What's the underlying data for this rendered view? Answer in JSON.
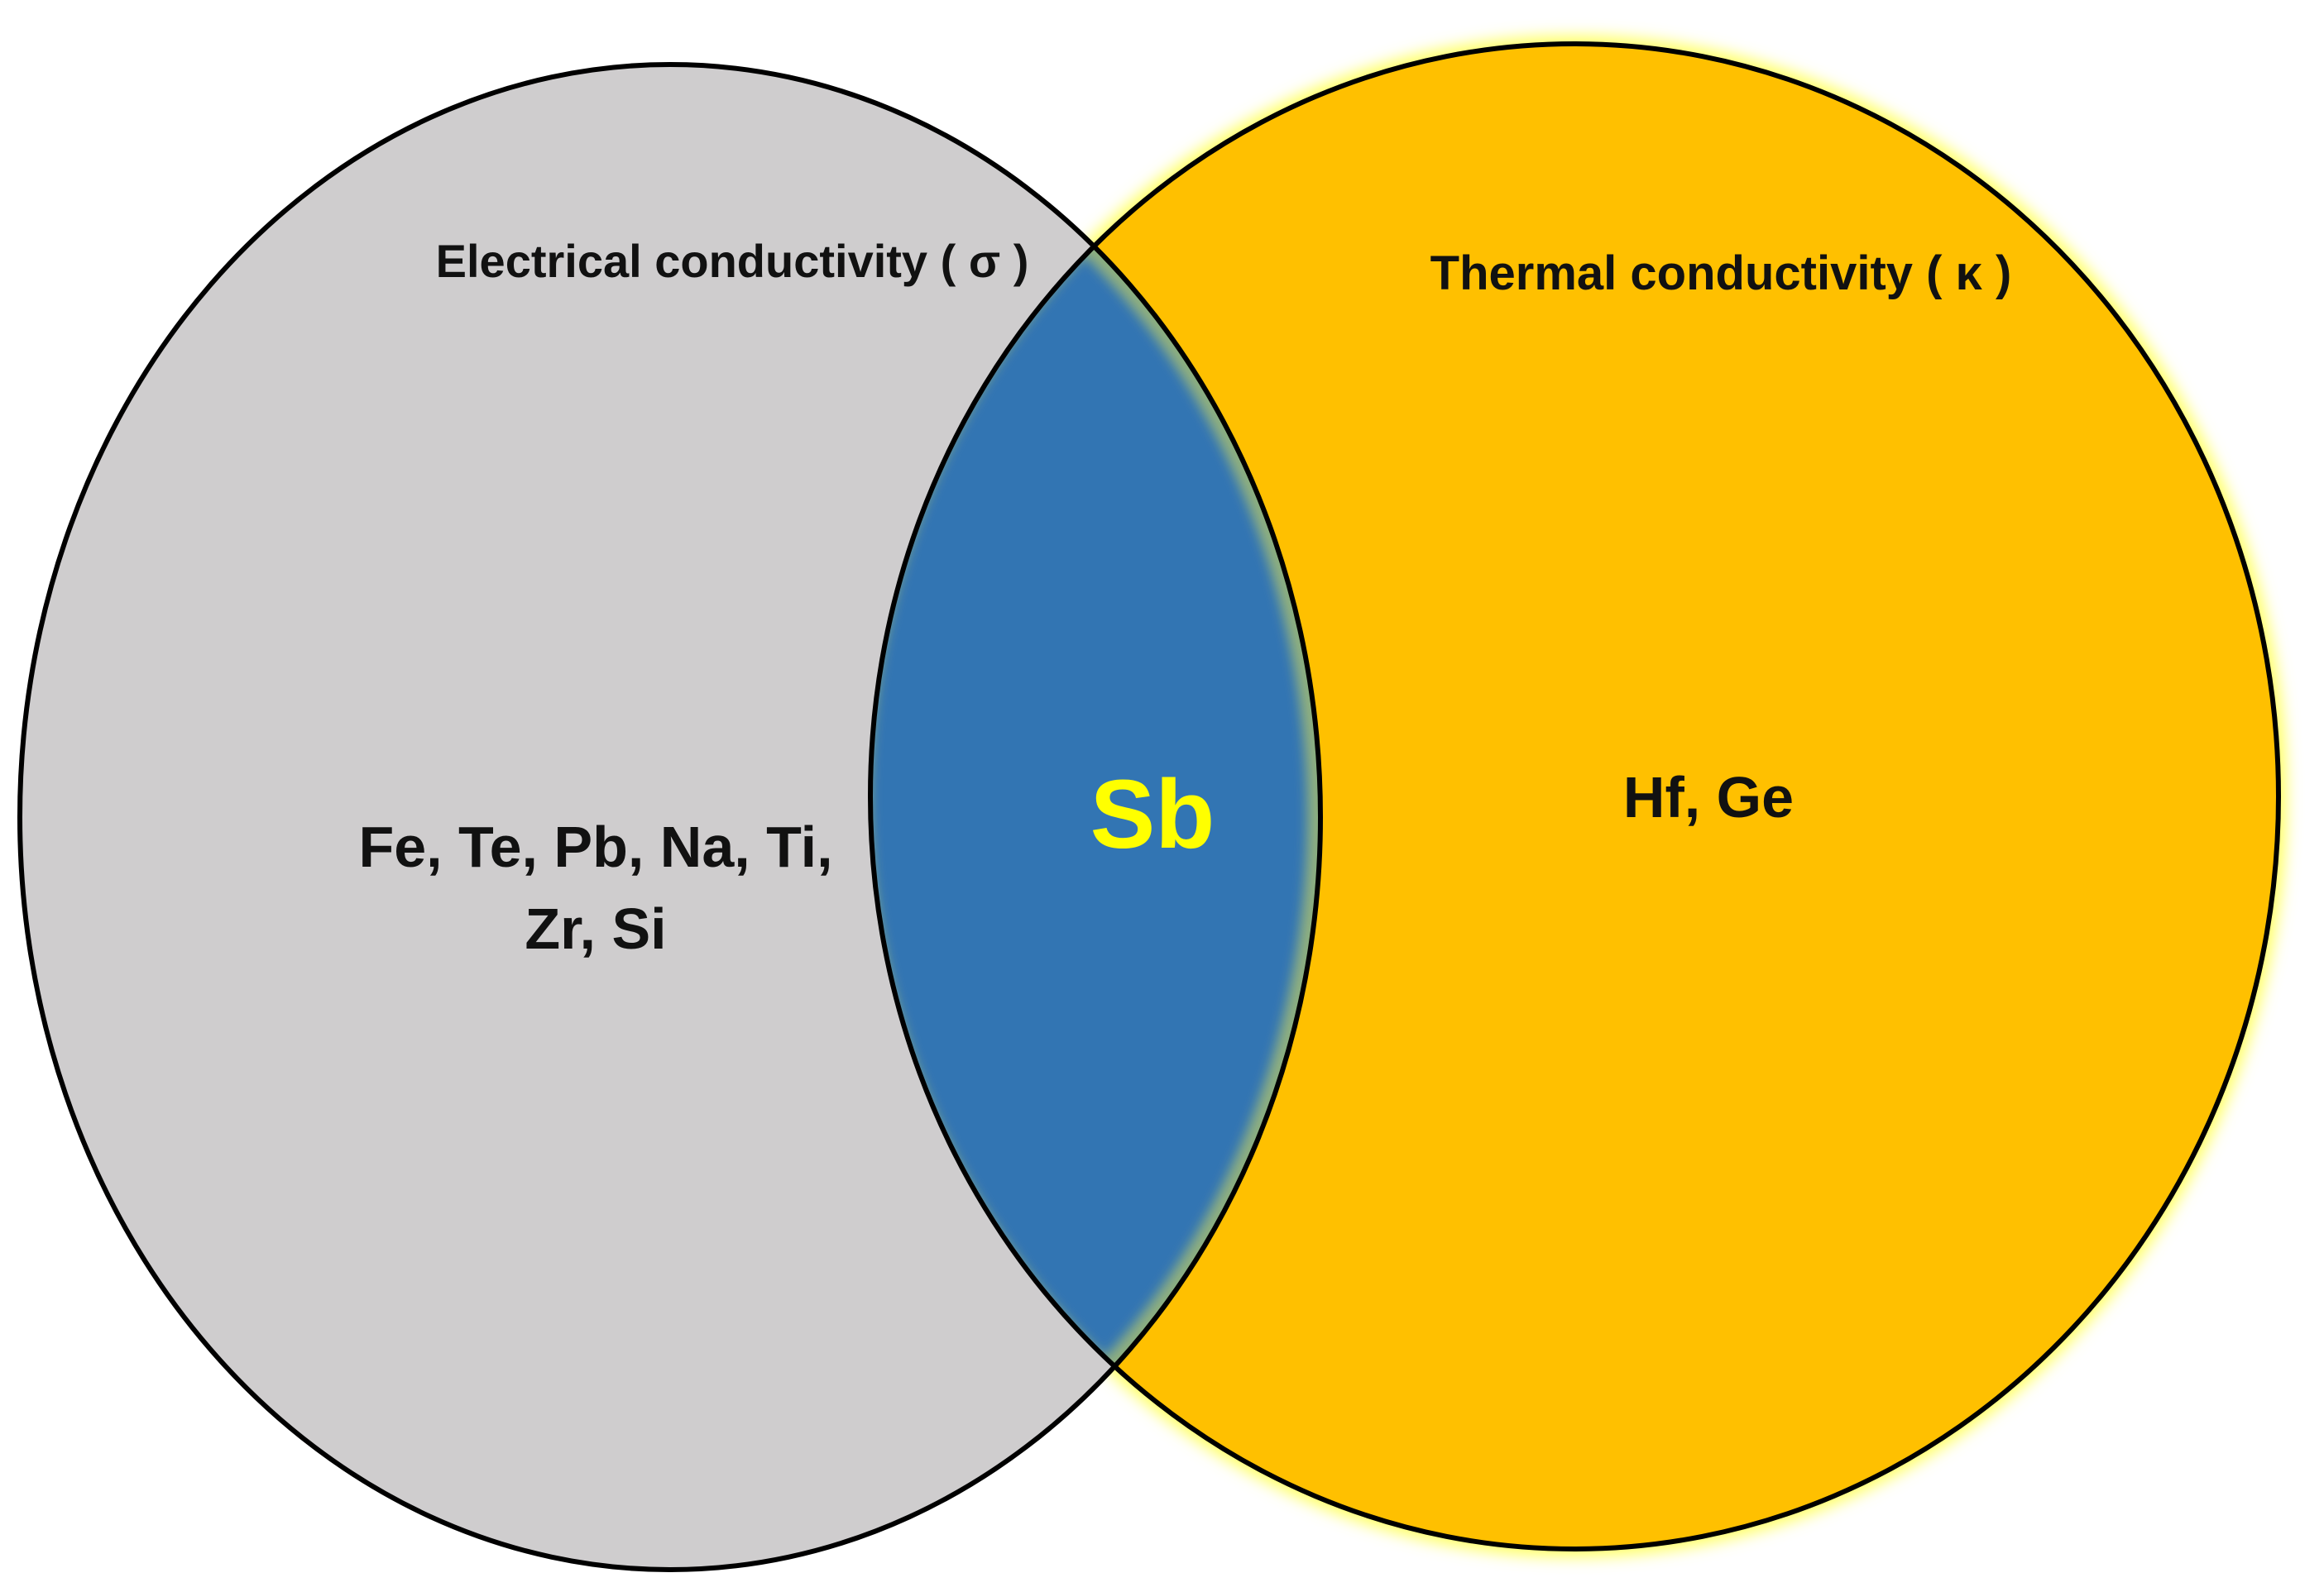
{
  "left_set": {
    "title": "Electrical conductivity ( σ )",
    "members_line1": "Fe, Te, Pb, Na, Ti,",
    "members_line2": "Zr, Si"
  },
  "right_set": {
    "title": "Thermal conductivity  ( κ )",
    "members": "Hf, Ge"
  },
  "intersection": {
    "members": "Sb"
  },
  "colors": {
    "left_fill": "#CFCDCE",
    "right_fill": "#FFC000",
    "intersection_fill": "#3174B3",
    "intersection_text": "#FFFF00",
    "right_glow": "#FFFF66",
    "outline": "#000000",
    "text": "#111111"
  }
}
